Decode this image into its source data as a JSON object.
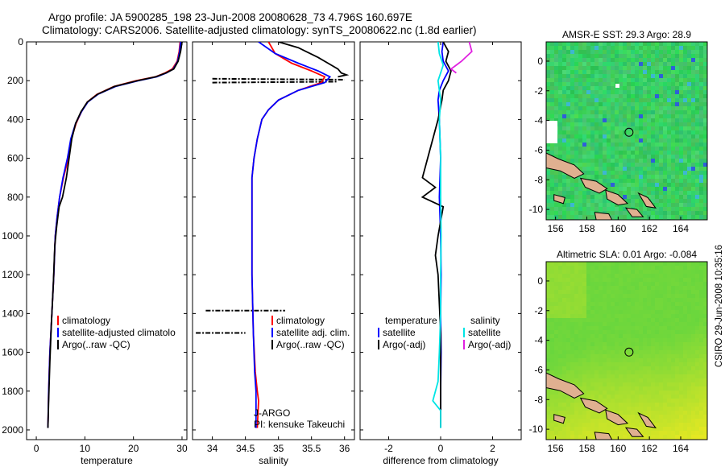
{
  "header": {
    "title_line1": "Argo profile: JA 5900285_198 23-Jun-2008 20080628_73 4.796S 160.697E",
    "title_line2": "Climatology: CARS2006. Satellite-adjusted climatology: synTS_20080622.nc (1.8d earlier)"
  },
  "side_label": "CSIRO 29-Jun-2008 10:35:16",
  "chart_data": [
    {
      "type": "line",
      "name": "temperature-profile",
      "xlabel": "temperature",
      "xlim": [
        -2,
        31
      ],
      "ylim": [
        0,
        2050
      ],
      "y_inverted": true,
      "xticks": [
        0,
        10,
        20,
        30
      ],
      "yticks": [
        0,
        200,
        400,
        600,
        800,
        1000,
        1200,
        1400,
        1600,
        1800,
        2000
      ],
      "legend": [
        "climatology",
        "satellite-adjusted climatolo",
        "Argo(..raw -QC)"
      ],
      "legend_placement": "lower-middle",
      "series": [
        {
          "name": "climatology",
          "color": "#ff0000",
          "x": [
            29.6,
            29.4,
            29.0,
            28.0,
            26.5,
            24.5,
            20.5,
            16.0,
            12.5,
            10.5,
            9.3,
            8.2,
            7.2,
            6.6,
            5.6,
            4.8,
            4.3,
            3.9,
            3.6,
            3.2,
            2.8,
            2.55,
            2.4
          ],
          "y": [
            0,
            50,
            100,
            140,
            160,
            180,
            200,
            230,
            270,
            310,
            360,
            420,
            500,
            600,
            700,
            800,
            900,
            1000,
            1200,
            1400,
            1600,
            1800,
            1990
          ]
        },
        {
          "name": "satellite-adjusted climatolo",
          "color": "#0000ff",
          "x": [
            29.7,
            29.5,
            29.1,
            28.2,
            26.8,
            24.8,
            21.0,
            16.3,
            12.7,
            10.6,
            9.3,
            8.1,
            7.1,
            6.4,
            5.5,
            4.8,
            4.3,
            3.9,
            3.6,
            3.2,
            2.8,
            2.55,
            2.4
          ],
          "y": [
            0,
            50,
            100,
            140,
            160,
            180,
            200,
            230,
            270,
            310,
            360,
            420,
            500,
            600,
            700,
            800,
            900,
            1000,
            1200,
            1400,
            1600,
            1800,
            1990
          ]
        },
        {
          "name": "Argo(..raw -QC)",
          "color": "#000000",
          "x": [
            30.0,
            29.7,
            29.2,
            28.3,
            26.7,
            24.6,
            20.8,
            16.1,
            12.6,
            10.5,
            9.2,
            8.1,
            7.3,
            6.2,
            5.4,
            4.7,
            4.2,
            3.8,
            3.5,
            3.1,
            2.8,
            2.55,
            2.4
          ],
          "y": [
            0,
            50,
            100,
            140,
            160,
            180,
            200,
            230,
            270,
            310,
            360,
            420,
            500,
            700,
            800,
            850,
            950,
            1050,
            1250,
            1450,
            1650,
            1850,
            1990
          ]
        }
      ]
    },
    {
      "type": "line",
      "name": "salinity-profile",
      "xlabel": "salinity",
      "xlim": [
        33.7,
        36.15
      ],
      "ylim": [
        0,
        2050
      ],
      "y_inverted": true,
      "xticks": [
        34,
        34.5,
        35,
        35.5,
        36
      ],
      "legend": [
        "climatology",
        "satellite adj. clim.",
        "Argo(..raw -QC)"
      ],
      "legend_placement": "lower-right",
      "annotation": [
        "J-ARGO",
        "PI: kensuke Takeuchi"
      ],
      "series": [
        {
          "name": "climatology",
          "color": "#ff0000",
          "x": [
            34.85,
            34.95,
            35.2,
            35.5,
            35.7,
            35.65,
            35.3,
            35.0,
            34.85,
            34.75,
            34.68,
            34.63,
            34.6,
            34.6,
            34.6,
            34.62,
            34.65,
            34.68,
            34.7,
            34.68
          ],
          "y": [
            0,
            60,
            110,
            150,
            180,
            210,
            250,
            300,
            350,
            400,
            500,
            600,
            700,
            900,
            1200,
            1500,
            1700,
            1800,
            1850,
            1990
          ]
        },
        {
          "name": "satellite adj. clim.",
          "color": "#0000ff",
          "x": [
            34.7,
            34.95,
            35.3,
            35.6,
            35.78,
            35.7,
            35.3,
            35.0,
            34.85,
            34.75,
            34.68,
            34.63,
            34.6,
            34.6,
            34.6,
            34.62,
            34.64,
            34.66,
            34.66,
            34.66
          ],
          "y": [
            0,
            60,
            110,
            150,
            180,
            210,
            250,
            300,
            350,
            400,
            500,
            600,
            700,
            900,
            1200,
            1500,
            1700,
            1800,
            1850,
            1990
          ]
        },
        {
          "name": "Argo(..raw -QC)",
          "color": "#000000",
          "x": [
            35.0,
            35.3,
            35.6,
            35.75,
            35.9,
            35.95,
            36.03,
            35.9
          ],
          "y": [
            0,
            30,
            80,
            110,
            140,
            160,
            170,
            180
          ]
        }
      ],
      "qc_flagged_segments": [
        {
          "x": [
            34.0,
            36.0
          ],
          "y": [
            190,
            195
          ]
        },
        {
          "x": [
            34.0,
            35.9
          ],
          "y": [
            210,
            205
          ]
        },
        {
          "x": [
            33.9,
            35.1
          ],
          "y": [
            1385,
            1385
          ]
        },
        {
          "x": [
            33.75,
            34.5
          ],
          "y": [
            1500,
            1500
          ]
        }
      ]
    },
    {
      "type": "line",
      "name": "difference-profile",
      "xlabel": "difference from climatology",
      "xlim": [
        -3.1,
        3.1
      ],
      "ylim": [
        0,
        2050
      ],
      "y_inverted": true,
      "xticks": [
        -2,
        0,
        2
      ],
      "legend": [
        "temperature",
        "satellite",
        "Argo(-adj)",
        "salinity",
        "satellite",
        "Argo(-adj)"
      ],
      "legend_placement": "lower-middle",
      "series": [
        {
          "name": "temperature satellite",
          "color": "#0000ff",
          "x": [
            0.1,
            0.05,
            0.1,
            0.3,
            0.1,
            -0.05,
            -0.1,
            -0.05,
            0,
            -0.05,
            0,
            0.02,
            0,
            0.02,
            0,
            0
          ],
          "y": [
            0,
            50,
            100,
            150,
            200,
            250,
            300,
            400,
            600,
            800,
            1000,
            1200,
            1400,
            1600,
            1800,
            1990
          ]
        },
        {
          "name": "temperature Argo(-adj)",
          "color": "#000000",
          "x": [
            0.1,
            0.3,
            0.2,
            0.4,
            0.3,
            0.1,
            0.05,
            -0.1,
            -0.7,
            -0.2,
            -0.7,
            0.1,
            -0.1,
            -0.2,
            -0.1,
            0,
            0,
            0
          ],
          "y": [
            0,
            50,
            100,
            150,
            200,
            250,
            300,
            400,
            700,
            750,
            800,
            850,
            1000,
            1100,
            1200,
            1500,
            1800,
            1990
          ]
        },
        {
          "name": "salinity satellite",
          "color": "#00e5e5",
          "x": [
            -0.1,
            -0.05,
            0.1,
            -0.1,
            0,
            -0.05,
            0,
            0,
            0.02,
            0,
            0,
            -0.05,
            -0.1,
            -0.3,
            0,
            0
          ],
          "y": [
            0,
            60,
            120,
            200,
            300,
            400,
            600,
            800,
            1000,
            1200,
            1400,
            1600,
            1750,
            1850,
            1900,
            1990
          ]
        },
        {
          "name": "salinity Argo(-adj)",
          "color": "#e020e0",
          "x": [
            1.1,
            1.2,
            0.8,
            0.6,
            0.4,
            0.6
          ],
          "y": [
            0,
            50,
            100,
            120,
            140,
            160
          ]
        }
      ]
    },
    {
      "type": "heatmap",
      "name": "sst-map",
      "title": "AMSR-E SST: 29.3 Argo: 28.9",
      "xticks": [
        156,
        158,
        160,
        162,
        164
      ],
      "yticks": [
        0,
        -2,
        -4,
        -6,
        -8,
        -10
      ],
      "xlim": [
        155.4,
        165.7
      ],
      "ylim": [
        -10.7,
        1.3
      ],
      "argo_position": {
        "lon": 160.697,
        "lat": -4.796
      }
    },
    {
      "type": "heatmap",
      "name": "sla-map",
      "title": "Altimetric SLA: 0.01 Argo: -0.084",
      "xticks": [
        156,
        158,
        160,
        162,
        164
      ],
      "yticks": [
        0,
        -2,
        -4,
        -6,
        -8,
        -10
      ],
      "xlim": [
        155.4,
        165.7
      ],
      "ylim": [
        -10.7,
        1.3
      ],
      "argo_position": {
        "lon": 160.697,
        "lat": -4.796
      }
    }
  ]
}
